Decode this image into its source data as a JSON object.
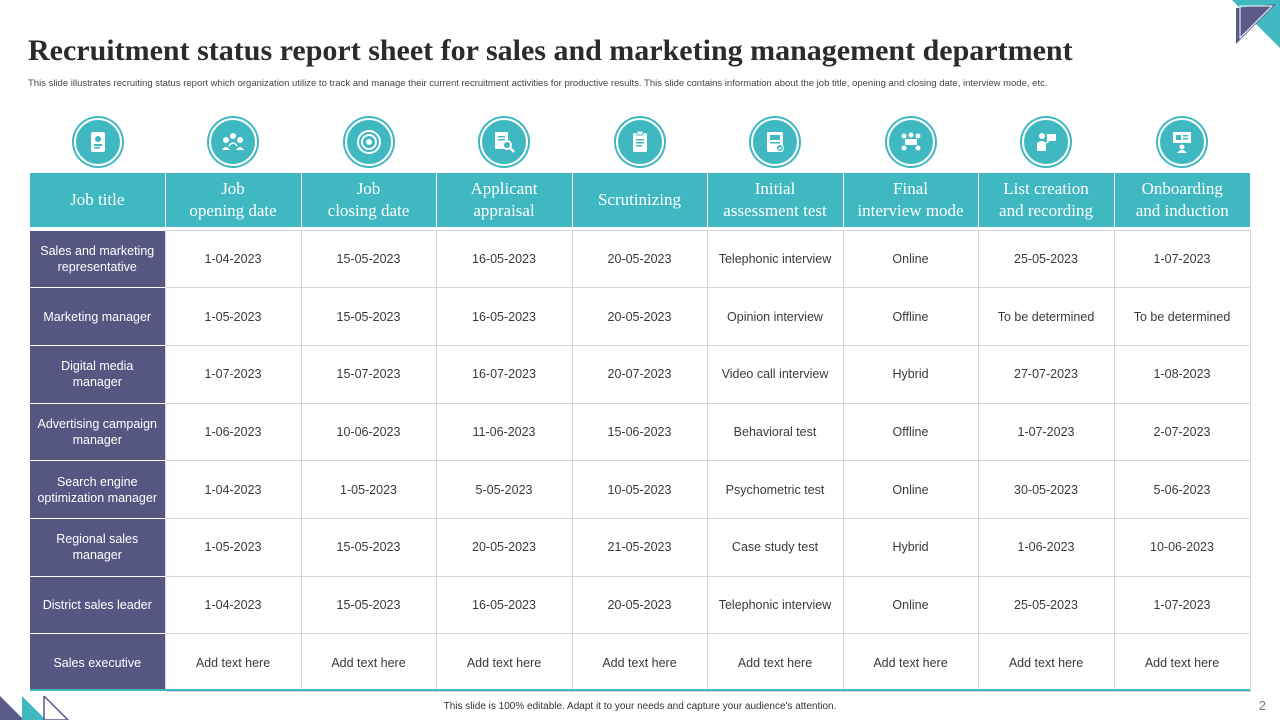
{
  "slide": {
    "title": "Recruitment status report sheet for sales and marketing management department",
    "subtitle": "This slide illustrates recruiting status report which organization utilize to track and manage their current recruitment activities for productive results. This slide contains information about the job title, opening and closing date, interview mode, etc.",
    "footer": "This slide is 100% editable. Adapt it to your needs and capture your audience's attention.",
    "page_number": "2"
  },
  "icons": [
    "id-badge-icon",
    "people-network-icon",
    "target-icon",
    "magnifier-document-icon",
    "clipboard-icon",
    "assessment-form-icon",
    "meeting-table-icon",
    "presenter-icon",
    "onboarding-board-icon"
  ],
  "colors": {
    "accent": "#3fb8c1",
    "job_column": "#565683"
  },
  "table": {
    "headers": [
      [
        "Job title",
        ""
      ],
      [
        "Job",
        "opening date"
      ],
      [
        "Job",
        "closing date"
      ],
      [
        "Applicant",
        "appraisal"
      ],
      [
        "Scrutinizing",
        ""
      ],
      [
        "Initial",
        "assessment test"
      ],
      [
        "Final",
        "interview mode"
      ],
      [
        "List creation",
        "and recording"
      ],
      [
        "Onboarding",
        "and induction"
      ]
    ],
    "rows": [
      [
        "Sales and marketing representative",
        "1-04-2023",
        "15-05-2023",
        "16-05-2023",
        "20-05-2023",
        "Telephonic interview",
        "Online",
        "25-05-2023",
        "1-07-2023"
      ],
      [
        "Marketing manager",
        "1-05-2023",
        "15-05-2023",
        "16-05-2023",
        "20-05-2023",
        "Opinion interview",
        "Offline",
        "To be determined",
        "To be determined"
      ],
      [
        "Digital media manager",
        "1-07-2023",
        "15-07-2023",
        "16-07-2023",
        "20-07-2023",
        "Video call interview",
        "Hybrid",
        "27-07-2023",
        "1-08-2023"
      ],
      [
        "Advertising campaign manager",
        "1-06-2023",
        "10-06-2023",
        "11-06-2023",
        "15-06-2023",
        "Behavioral  test",
        "Offline",
        "1-07-2023",
        "2-07-2023"
      ],
      [
        "Search engine optimization manager",
        "1-04-2023",
        "1-05-2023",
        "5-05-2023",
        "10-05-2023",
        "Psychometric test",
        "Online",
        "30-05-2023",
        "5-06-2023"
      ],
      [
        "Regional sales manager",
        "1-05-2023",
        "15-05-2023",
        "20-05-2023",
        "21-05-2023",
        "Case  study test",
        "Hybrid",
        "1-06-2023",
        "10-06-2023"
      ],
      [
        "District sales leader",
        "1-04-2023",
        "15-05-2023",
        "16-05-2023",
        "20-05-2023",
        "Telephonic interview",
        "Online",
        "25-05-2023",
        "1-07-2023"
      ],
      [
        "Sales executive",
        "Add text here",
        "Add text here",
        "Add text here",
        "Add text here",
        "Add text here",
        "Add text here",
        "Add text here",
        "Add text here"
      ]
    ]
  }
}
